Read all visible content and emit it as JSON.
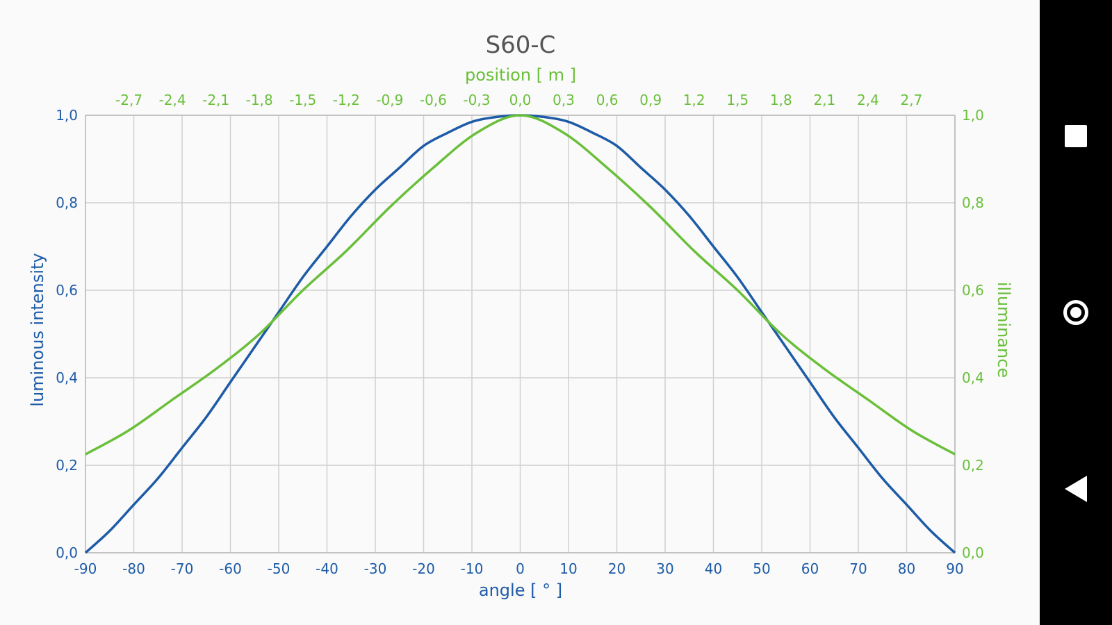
{
  "colors": {
    "background": "#fafafa",
    "grid": "#d0d0d0",
    "plot_border": "#b9b9b9",
    "title": "#555555",
    "intensity": "#1e5ba6",
    "illuminance": "#6abf3a",
    "nav_bar": "#000000",
    "nav_icon": "#ffffff"
  },
  "nav": {
    "recents_icon": "square-recents-icon",
    "home_icon": "circle-home-icon",
    "back_icon": "triangle-back-icon"
  },
  "chart_data": {
    "type": "line",
    "title": "S60-C",
    "xlabel": "angle [ ° ]",
    "x2label": "position [ m ]",
    "ylabel": "luminous intensity",
    "y2label": "illuminance",
    "xlim": [
      -90,
      90
    ],
    "x2lim": [
      -3.0,
      3.0
    ],
    "ylim": [
      0,
      1
    ],
    "y2lim": [
      0,
      1
    ],
    "grid": true,
    "x_ticks": [
      -90,
      -80,
      -70,
      -60,
      -50,
      -40,
      -30,
      -20,
      -10,
      0,
      10,
      20,
      30,
      40,
      50,
      60,
      70,
      80,
      90
    ],
    "x_tick_labels": [
      "-90",
      "-80",
      "-70",
      "-60",
      "-50",
      "-40",
      "-30",
      "-20",
      "-10",
      "0",
      "10",
      "20",
      "30",
      "40",
      "50",
      "60",
      "70",
      "80",
      "90"
    ],
    "x2_ticks": [
      -2.7,
      -2.4,
      -2.1,
      -1.8,
      -1.5,
      -1.2,
      -0.9,
      -0.6,
      -0.3,
      0.0,
      0.3,
      0.6,
      0.9,
      1.2,
      1.5,
      1.8,
      2.1,
      2.4,
      2.7
    ],
    "x2_tick_labels": [
      "-2,7",
      "-2,4",
      "-2,1",
      "-1,8",
      "-1,5",
      "-1,2",
      "-0,9",
      "-0,6",
      "-0,3",
      "0,0",
      "0,3",
      "0,6",
      "0,9",
      "1,2",
      "1,5",
      "1,8",
      "2,1",
      "2,4",
      "2,7"
    ],
    "y_ticks": [
      0,
      0.2,
      0.4,
      0.6,
      0.8,
      1.0
    ],
    "y_tick_labels": [
      "0,0",
      "0,2",
      "0,4",
      "0,6",
      "0,8",
      "1,0"
    ],
    "y2_ticks": [
      0,
      0.2,
      0.4,
      0.6,
      0.8,
      1.0
    ],
    "y2_tick_labels": [
      "0,0",
      "0,2",
      "0,4",
      "0,6",
      "0,8",
      "1,0"
    ],
    "series": [
      {
        "name": "luminous intensity",
        "axis": "angle",
        "x": [
          -90,
          -85,
          -80,
          -75,
          -70,
          -65,
          -60,
          -55,
          -50,
          -45,
          -40,
          -35,
          -30,
          -25,
          -20,
          -15,
          -10,
          -5,
          0,
          5,
          10,
          15,
          20,
          25,
          30,
          35,
          40,
          45,
          50,
          55,
          60,
          65,
          70,
          75,
          80,
          85,
          90
        ],
        "y": [
          0.0,
          0.05,
          0.11,
          0.17,
          0.24,
          0.31,
          0.39,
          0.47,
          0.55,
          0.63,
          0.7,
          0.77,
          0.83,
          0.88,
          0.93,
          0.96,
          0.985,
          0.996,
          1.0,
          0.996,
          0.985,
          0.96,
          0.93,
          0.88,
          0.83,
          0.77,
          0.7,
          0.63,
          0.55,
          0.47,
          0.39,
          0.31,
          0.24,
          0.17,
          0.11,
          0.05,
          0.0
        ]
      },
      {
        "name": "illuminance",
        "axis": "position",
        "x": [
          -3.0,
          -2.7,
          -2.4,
          -2.1,
          -1.8,
          -1.5,
          -1.2,
          -0.9,
          -0.6,
          -0.3,
          0.0,
          0.3,
          0.6,
          0.9,
          1.2,
          1.5,
          1.8,
          2.1,
          2.4,
          2.7,
          3.0
        ],
        "y": [
          0.225,
          0.28,
          0.35,
          0.42,
          0.5,
          0.6,
          0.69,
          0.79,
          0.88,
          0.96,
          1.0,
          0.96,
          0.88,
          0.79,
          0.69,
          0.6,
          0.5,
          0.42,
          0.35,
          0.28,
          0.225
        ]
      }
    ]
  }
}
